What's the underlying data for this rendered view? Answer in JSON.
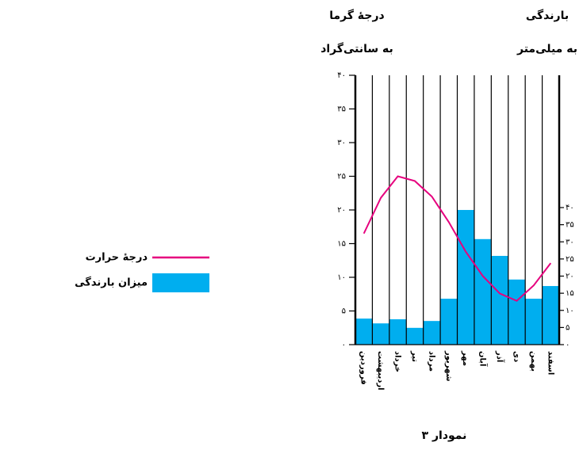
{
  "chart_data": {
    "type": "climograph",
    "caption": "نمودار ۳",
    "y_label": [
      "درجهٔ گرما",
      "به سانتی‌گراد"
    ],
    "y2_label": [
      "بارندگی",
      "به میلی‌متر"
    ],
    "categories": [
      "فروردین",
      "اردیبهشت",
      "خرداد",
      "تیر",
      "مرداد",
      "شهریور",
      "مهر",
      "آبان",
      "آذر",
      "دی",
      "بهمن",
      "اسفند"
    ],
    "series": [
      {
        "name": "درجهٔ حرارت",
        "type": "line",
        "color": "#e6007e",
        "values": [
          16.5,
          21.8,
          25,
          24.3,
          22,
          18.2,
          13.8,
          10.2,
          7.6,
          6.5,
          8.8,
          12.1
        ]
      },
      {
        "name": "میزان بارندگی",
        "type": "bar",
        "axis": "y2",
        "color": "#00aeef",
        "values": [
          7.6,
          6.2,
          7.4,
          4.9,
          6.9,
          13.4,
          39.3,
          30.8,
          25.9,
          19,
          13.4,
          17.1
        ]
      }
    ],
    "ylim": [
      0,
      40
    ],
    "yticks": [
      {
        "value": 0,
        "label": "۰"
      },
      {
        "value": 5,
        "label": "۵"
      },
      {
        "value": 10,
        "label": "۱۰"
      },
      {
        "value": 15,
        "label": "۱۵"
      },
      {
        "value": 20,
        "label": "۲۰"
      },
      {
        "value": 25,
        "label": "۲۵"
      },
      {
        "value": 30,
        "label": "۳۰"
      },
      {
        "value": 35,
        "label": "۳۵"
      },
      {
        "value": 40,
        "label": "۴۰"
      }
    ],
    "y2lim": [
      0,
      40
    ],
    "y2ticks": [
      {
        "value": 0,
        "label": "۰"
      },
      {
        "value": 5,
        "label": "۵"
      },
      {
        "value": 10,
        "label": "۱۰"
      },
      {
        "value": 15,
        "label": "۱۵"
      },
      {
        "value": 20,
        "label": "۲۰"
      },
      {
        "value": 25,
        "label": "۲۵"
      },
      {
        "value": 30,
        "label": "۳۰"
      },
      {
        "value": 35,
        "label": "۳۵"
      },
      {
        "value": 40,
        "label": "۴۰"
      }
    ]
  }
}
